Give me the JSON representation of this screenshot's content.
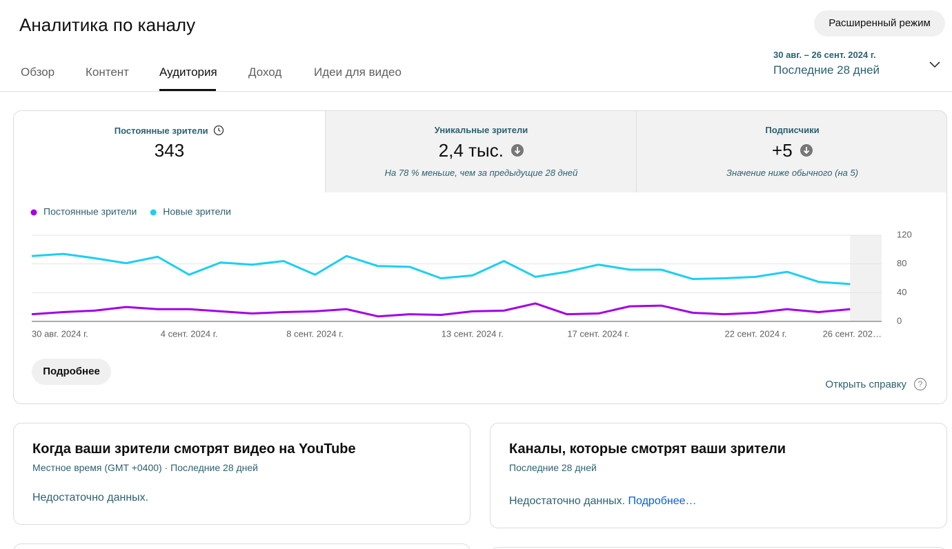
{
  "header": {
    "title": "Аналитика по каналу",
    "button": "Расширенный режим"
  },
  "tabs": [
    "Обзор",
    "Контент",
    "Аудитория",
    "Доход",
    "Идеи для видео"
  ],
  "date_range": {
    "dates": "30 авг. – 26 сент. 2024 г.",
    "label": "Последние 28 дней"
  },
  "metrics": [
    {
      "label": "Постоянные зрители",
      "value": "343"
    },
    {
      "label": "Уникальные зрители",
      "value": "2,4 тыс.",
      "note": "На 78 % меньше, чем за предыдущие 28 дней"
    },
    {
      "label": "Подписчики",
      "value": "+5",
      "note": "Значение ниже обычного (на 5)"
    }
  ],
  "chart_data": {
    "type": "line",
    "categories": [
      "30 авг. 2024 г.",
      null,
      null,
      null,
      null,
      "4 сент. 2024 г.",
      null,
      null,
      null,
      "8 сент. 2024 г.",
      null,
      null,
      null,
      null,
      "13 сент. 2024 г.",
      null,
      null,
      null,
      "17 сент. 2024 г.",
      null,
      null,
      null,
      null,
      "22 сент. 2024 г.",
      null,
      null,
      null,
      "26 сент. 202…"
    ],
    "series": [
      {
        "name": "Постоянные зрители",
        "color": "#a300e8",
        "values": [
          10,
          13,
          15,
          20,
          17,
          17,
          14,
          11,
          13,
          14,
          17,
          7,
          10,
          9,
          14,
          15,
          25,
          10,
          11,
          21,
          22,
          12,
          10,
          12,
          17,
          13,
          17,
          null
        ]
      },
      {
        "name": "Новые зрители",
        "color": "#1ccff3",
        "values": [
          91,
          94,
          88,
          81,
          90,
          65,
          82,
          79,
          84,
          65,
          91,
          77,
          76,
          60,
          64,
          84,
          62,
          69,
          79,
          72,
          72,
          59,
          60,
          62,
          69,
          55,
          52,
          null
        ]
      }
    ],
    "ylim": [
      0,
      120
    ],
    "yticks": [
      0,
      40,
      80,
      120
    ],
    "grid": true
  },
  "more_button": "Подробнее",
  "help_link": "Открыть справку",
  "cards": [
    {
      "title": "Когда ваши зрители смотрят видео на YouTube",
      "subtitle": "Местное время (GMT +0400) · Последние 28 дней",
      "text": "Недостаточно данных."
    },
    {
      "title": "Каналы, которые смотрят ваши зрители",
      "subtitle": "Последние 28 дней",
      "text": "Недостаточно данных.",
      "link": "Подробнее…"
    }
  ]
}
